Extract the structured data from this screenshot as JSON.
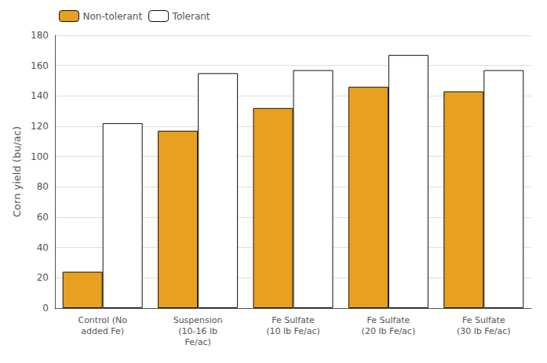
{
  "chart_data": {
    "type": "bar",
    "categories": [
      "Control (No\nadded Fe)",
      "Suspension\n(10-16 lb\nFe/ac)",
      "Fe Sulfate\n(10 lb Fe/ac)",
      "Fe Sulfate\n(20 lb Fe/ac)",
      "Fe Sulfate\n(30 lb Fe/ac)"
    ],
    "series": [
      {
        "name": "Non-tolerant",
        "color": "#E8A020",
        "values": [
          24,
          117,
          132,
          146,
          143
        ]
      },
      {
        "name": "Tolerant",
        "color": "#FFFFFF",
        "values": [
          122,
          155,
          157,
          167,
          157
        ]
      }
    ],
    "ylabel": "Corn yield (bu/ac)",
    "ylim": [
      0,
      180
    ],
    "yticks": [
      0,
      20,
      40,
      60,
      80,
      100,
      120,
      140,
      160,
      180
    ],
    "grid": true,
    "legend": "upper left"
  }
}
